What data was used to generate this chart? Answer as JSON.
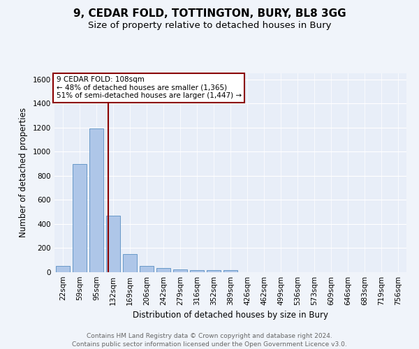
{
  "title1": "9, CEDAR FOLD, TOTTINGTON, BURY, BL8 3GG",
  "title2": "Size of property relative to detached houses in Bury",
  "xlabel": "Distribution of detached houses by size in Bury",
  "ylabel": "Number of detached properties",
  "categories": [
    "22sqm",
    "59sqm",
    "95sqm",
    "132sqm",
    "169sqm",
    "206sqm",
    "242sqm",
    "279sqm",
    "316sqm",
    "352sqm",
    "389sqm",
    "426sqm",
    "462sqm",
    "499sqm",
    "536sqm",
    "573sqm",
    "609sqm",
    "646sqm",
    "683sqm",
    "719sqm",
    "756sqm"
  ],
  "values": [
    50,
    900,
    1190,
    470,
    150,
    55,
    35,
    25,
    20,
    20,
    20,
    0,
    0,
    0,
    0,
    0,
    0,
    0,
    0,
    0,
    0
  ],
  "bar_color": "#aec6e8",
  "bar_edge_color": "#5a8fc2",
  "vline_x": 2.72,
  "vline_color": "#8b0000",
  "annotation_text": "9 CEDAR FOLD: 108sqm\n← 48% of detached houses are smaller (1,365)\n51% of semi-detached houses are larger (1,447) →",
  "ylim": [
    0,
    1650
  ],
  "yticks": [
    0,
    200,
    400,
    600,
    800,
    1000,
    1200,
    1400,
    1600
  ],
  "footer": "Contains HM Land Registry data © Crown copyright and database right 2024.\nContains public sector information licensed under the Open Government Licence v3.0.",
  "bg_color": "#f0f4fa",
  "plot_bg_color": "#e8eef8",
  "grid_color": "#ffffff",
  "title1_fontsize": 11,
  "title2_fontsize": 9.5,
  "xlabel_fontsize": 8.5,
  "ylabel_fontsize": 8.5,
  "tick_fontsize": 7.5,
  "footer_fontsize": 6.5,
  "annot_fontsize": 7.5
}
